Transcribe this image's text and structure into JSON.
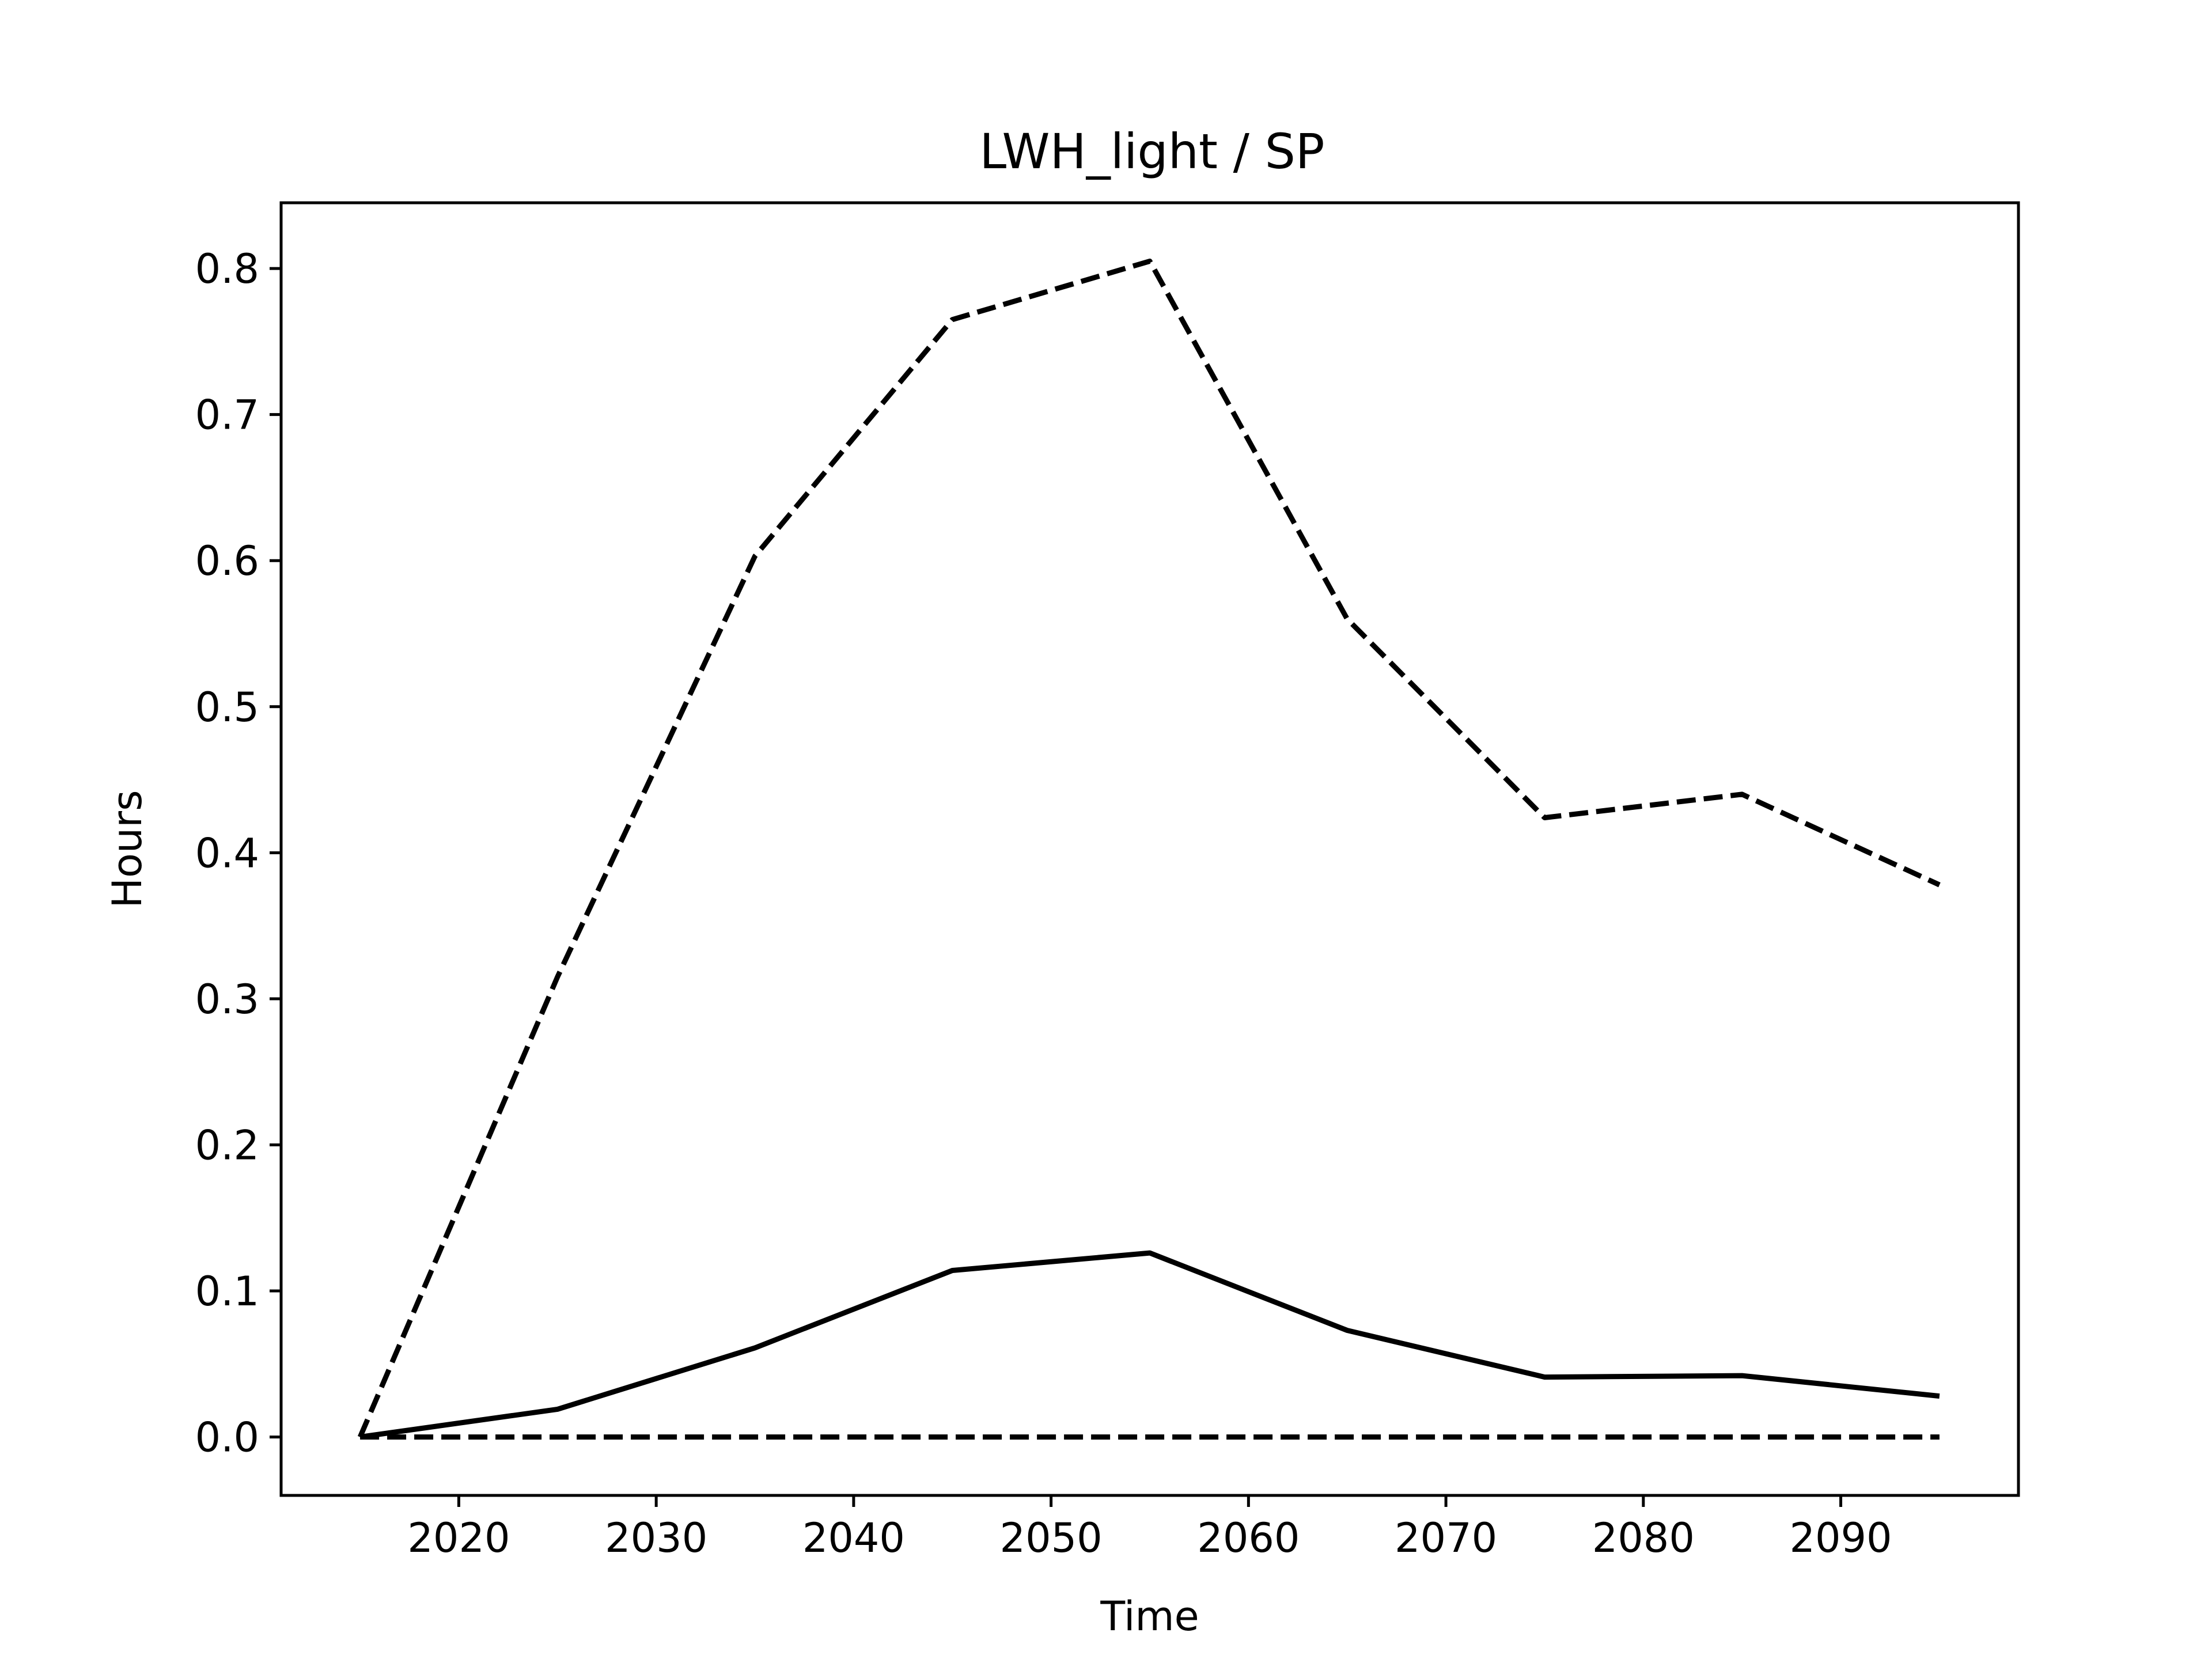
{
  "chart_data": {
    "type": "line",
    "title": "LWH_light / SP",
    "xlabel": "Time",
    "ylabel": "Hours",
    "xlim": [
      2011,
      2099
    ],
    "ylim": [
      -0.04,
      0.845
    ],
    "xticks": [
      2020,
      2030,
      2040,
      2050,
      2060,
      2070,
      2080,
      2090
    ],
    "yticks": [
      0.0,
      0.1,
      0.2,
      0.3,
      0.4,
      0.5,
      0.6,
      0.7,
      0.8
    ],
    "ytick_labels": [
      "0.0",
      "0.1",
      "0.2",
      "0.3",
      "0.4",
      "0.5",
      "0.6",
      "0.7",
      "0.8"
    ],
    "grid": false,
    "legend": "none",
    "x": [
      2015,
      2025,
      2035,
      2045,
      2055,
      2065,
      2075,
      2085,
      2095
    ],
    "series": [
      {
        "style": "dashed",
        "color": "#000000",
        "values": [
          0.0,
          0.315,
          0.603,
          0.765,
          0.805,
          0.56,
          0.424,
          0.44,
          0.378
        ]
      },
      {
        "style": "solid",
        "color": "#000000",
        "values": [
          0.0,
          0.019,
          0.061,
          0.114,
          0.126,
          0.073,
          0.041,
          0.042,
          0.028
        ]
      },
      {
        "style": "dashed",
        "color": "#000000",
        "values": [
          0.0,
          0.0,
          0.0,
          0.0,
          0.0,
          0.0,
          0.0,
          0.0,
          0.0
        ]
      }
    ]
  }
}
